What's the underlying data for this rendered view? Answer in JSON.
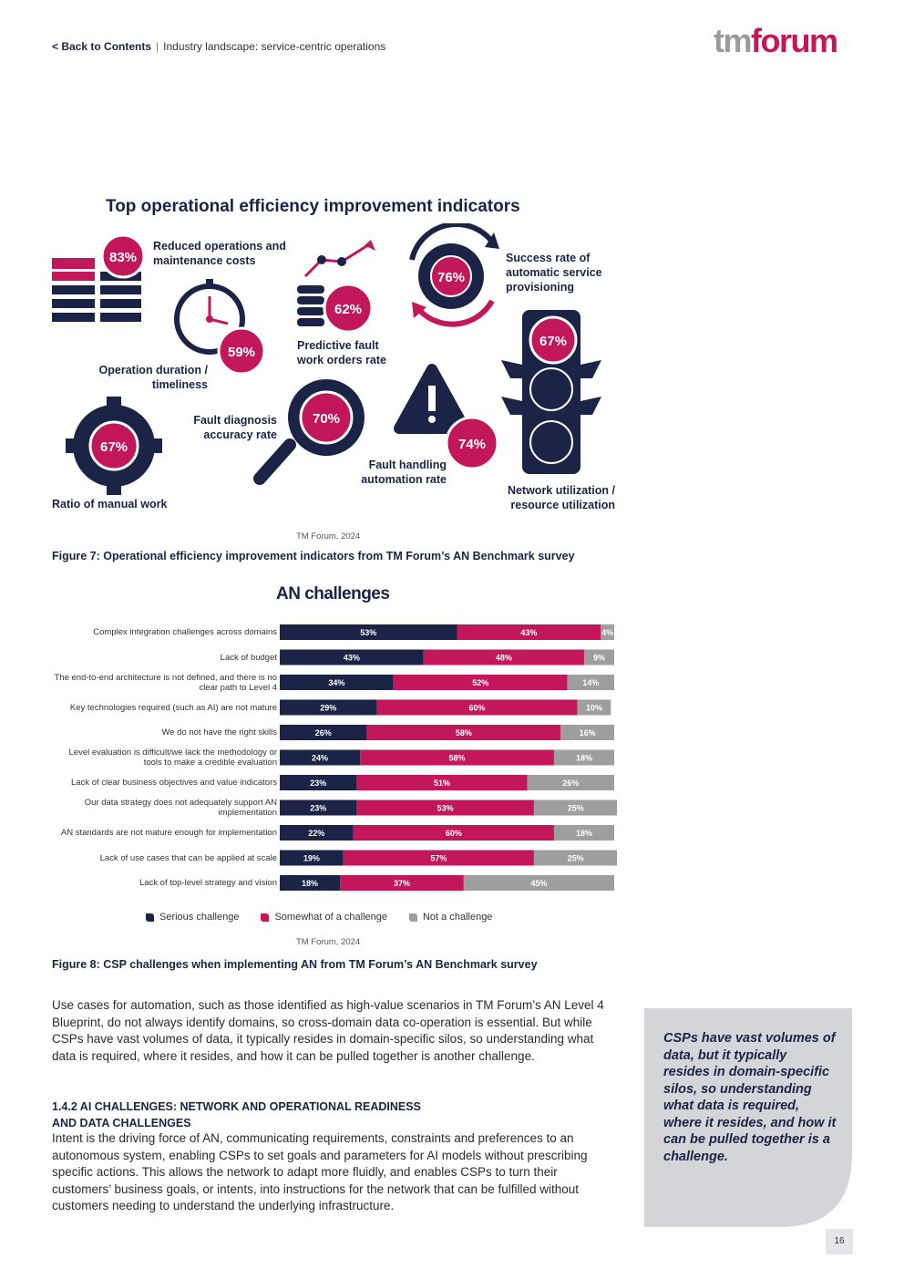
{
  "header": {
    "back_label": "< Back to Contents",
    "separator": "|",
    "section": "Industry landscape: service-centric operations",
    "logo_tm": "tm",
    "logo_forum": "forum"
  },
  "figure7": {
    "title": "Top operational efficiency improvement indicators",
    "indicators": [
      {
        "pct": "83%",
        "label": "Reduced operations and maintenance costs",
        "icon": "list-rows-icon"
      },
      {
        "pct": "59%",
        "label": "Operation duration / timeliness",
        "icon": "clock-icon"
      },
      {
        "pct": "62%",
        "label": "Predictive fault work orders rate",
        "icon": "trend-coins-icon"
      },
      {
        "pct": "76%",
        "label": "Success rate of automatic service provisioning",
        "icon": "gear-cycle-icon"
      },
      {
        "pct": "67%",
        "label": "Network utilization / resource utilization",
        "icon": "traffic-light-icon"
      },
      {
        "pct": "67%",
        "label": "Ratio of manual work",
        "icon": "gear-icon"
      },
      {
        "pct": "70%",
        "label": "Fault diagnosis accuracy rate",
        "icon": "magnifier-icon"
      },
      {
        "pct": "74%",
        "label": "Fault handling automation rate",
        "icon": "warning-triangle-icon"
      }
    ],
    "source": "TM Forum, 2024",
    "caption": "Figure 7: Operational efficiency improvement indicators from TM Forum’s AN Benchmark survey"
  },
  "chart_data": {
    "type": "bar",
    "stacked": true,
    "orientation": "horizontal",
    "title": "AN challenges",
    "categories": [
      "Complex integration challenges across domains",
      "Lack of budget",
      "The end-to-end architecture is not defined, and there is no clear path to Level 4",
      "Key technologies required (such as AI) are not mature",
      "We do not have the right skills",
      "Level evaluation is difficult/we lack the methodology or tools to make a credible evaluation",
      "Lack of clear business objectives and value indicators",
      "Our data strategy does not adequately support AN implementation",
      "AN standards are not mature enough for implementation",
      "Lack of use cases that can be applied at scale",
      "Lack of top-level strategy and vision"
    ],
    "series": [
      {
        "name": "Serious challenge",
        "values": [
          53,
          43,
          34,
          29,
          26,
          24,
          23,
          23,
          22,
          19,
          18
        ]
      },
      {
        "name": "Somewhat of a challenge",
        "values": [
          43,
          48,
          52,
          60,
          58,
          58,
          51,
          53,
          60,
          57,
          37
        ]
      },
      {
        "name": "Not a challenge",
        "values": [
          4,
          9,
          14,
          10,
          16,
          18,
          26,
          25,
          18,
          25,
          45
        ]
      }
    ],
    "legend_position": "bottom",
    "colors": [
      "#1b2347",
      "#c2185b",
      "#9e9e9e"
    ],
    "value_suffix": "%"
  },
  "figure8": {
    "source": "TM Forum, 2024",
    "caption": "Figure 8: CSP challenges when implementing AN from TM Forum’s AN Benchmark survey"
  },
  "body": {
    "para1": "Use cases for automation, such as those identified as high-value scenarios in TM Forum’s AN Level 4 Blueprint, do not always identify domains, so cross-domain data co-operation is essential. But while CSPs have vast volumes of data, it typically resides in domain-specific silos, so understanding what data is required, where it resides, and how it can be pulled together is another challenge.",
    "heading_line1": "1.4.2 AI CHALLENGES: NETWORK AND OPERATIONAL READINESS",
    "heading_line2": "AND DATA CHALLENGES",
    "para2": "Intent is the driving force of AN, communicating requirements, constraints and preferences to an autonomous system, enabling CSPs to set goals and parameters for AI models without prescribing specific actions. This allows the network to adapt more fluidly, and enables CSPs to turn their customers’ business goals, or intents, into instructions for the network that can be fulfilled without customers needing to understand the underlying infrastructure."
  },
  "callout": {
    "text": "CSPs have vast volumes of data, but it typically resides in domain-specific silos, so understanding what data is required, where it resides, and how it can be pulled together is a challenge."
  },
  "page_number": "16",
  "colors": {
    "navy": "#1b2347",
    "magenta": "#c2185b",
    "grey": "#9e9e9e"
  }
}
